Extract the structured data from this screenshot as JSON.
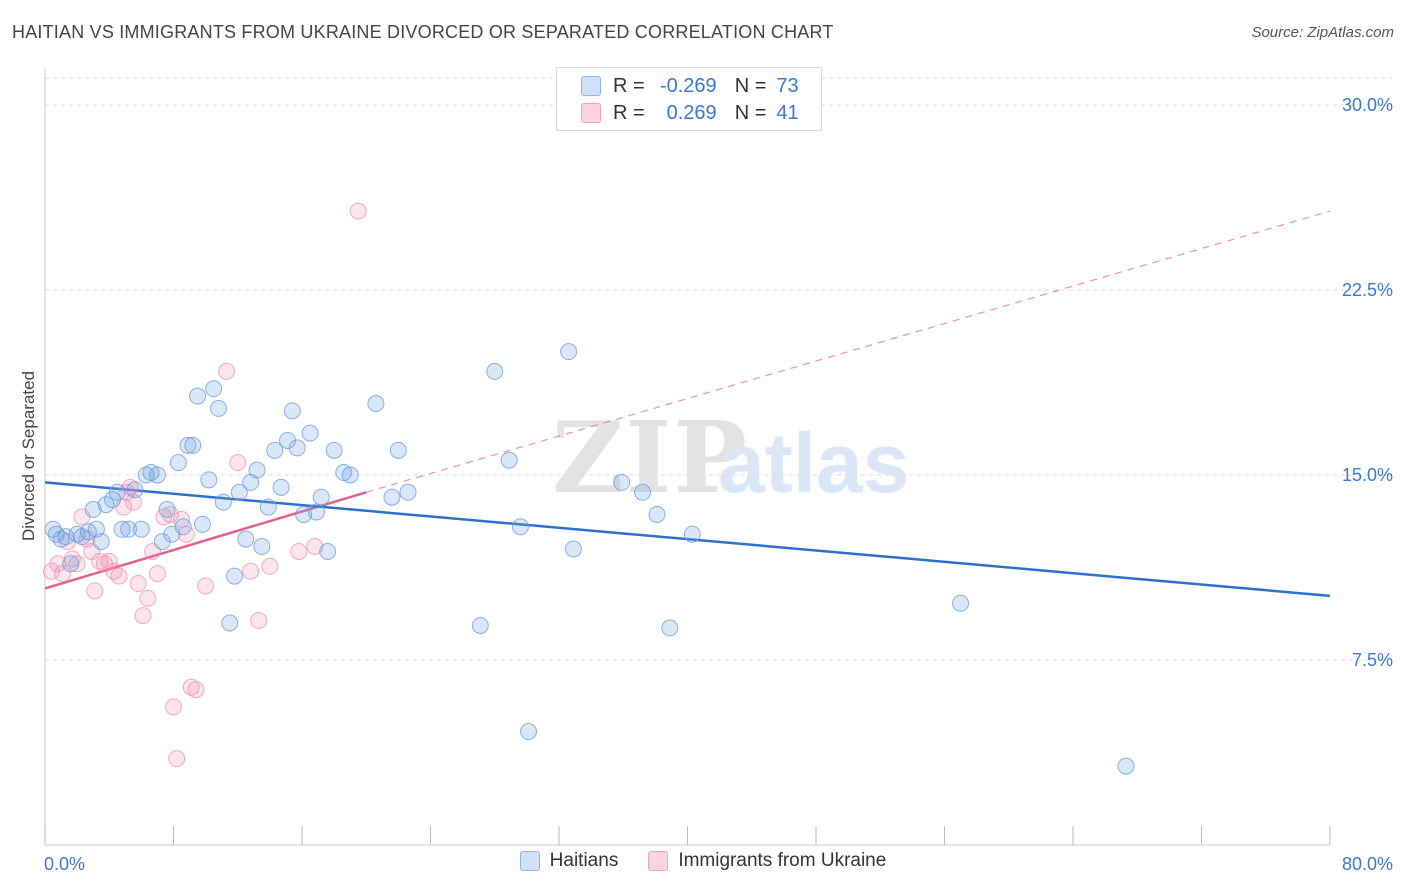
{
  "header": {
    "title": "HAITIAN VS IMMIGRANTS FROM UKRAINE DIVORCED OR SEPARATED CORRELATION CHART",
    "source": "Source: ZipAtlas.com"
  },
  "watermark": {
    "zip": "ZIP",
    "atlas": "atlas"
  },
  "legend": {
    "rows": [
      {
        "r_label": "R =",
        "r_value": "-0.269",
        "n_label": "N =",
        "n_value": "73",
        "color": "#a9c8f0"
      },
      {
        "r_label": "R =",
        "r_value": "0.269",
        "n_label": "N =",
        "n_value": "41",
        "color": "#f6b8ca"
      }
    ]
  },
  "chart_data": {
    "type": "scatter",
    "ylabel": "Divorced or Separated",
    "xlabel": "",
    "xlim": [
      0,
      80
    ],
    "ylim": [
      0,
      31.5
    ],
    "x_tick_labels": [
      "0.0%",
      "80.0%"
    ],
    "y_ticks": [
      7.5,
      15.0,
      22.5,
      30.0
    ],
    "y_tick_labels": [
      "7.5%",
      "15.0%",
      "22.5%",
      "30.0%"
    ],
    "grid": "horizontal dashed",
    "colors": {
      "haitians": "#6a9fe0",
      "ukraine": "#f08aaa",
      "haitians_line": "#2f6fcc",
      "ukraine_line": "#e0628c",
      "tick_label": "#3b77d6"
    },
    "series": [
      {
        "name": "Haitians",
        "trend": {
          "x": [
            0,
            80
          ],
          "y": [
            14.7,
            10.1
          ],
          "dashed_extension": false
        },
        "points": [
          [
            0.5,
            12.8
          ],
          [
            0.7,
            12.6
          ],
          [
            1.0,
            12.4
          ],
          [
            1.3,
            12.5
          ],
          [
            1.6,
            11.4
          ],
          [
            2.0,
            12.6
          ],
          [
            2.3,
            12.5
          ],
          [
            2.7,
            12.7
          ],
          [
            3.0,
            13.6
          ],
          [
            3.2,
            12.8
          ],
          [
            3.5,
            12.3
          ],
          [
            3.8,
            13.8
          ],
          [
            4.2,
            14.0
          ],
          [
            4.5,
            14.3
          ],
          [
            4.8,
            12.8
          ],
          [
            5.2,
            12.8
          ],
          [
            5.6,
            14.4
          ],
          [
            6.0,
            12.8
          ],
          [
            6.3,
            15.0
          ],
          [
            6.6,
            15.1
          ],
          [
            7.0,
            15.0
          ],
          [
            7.3,
            12.3
          ],
          [
            7.6,
            13.6
          ],
          [
            7.9,
            12.6
          ],
          [
            8.3,
            15.5
          ],
          [
            8.6,
            12.9
          ],
          [
            8.9,
            16.2
          ],
          [
            9.2,
            16.2
          ],
          [
            9.5,
            18.2
          ],
          [
            9.8,
            13.0
          ],
          [
            10.2,
            14.8
          ],
          [
            10.5,
            18.5
          ],
          [
            10.8,
            17.7
          ],
          [
            11.1,
            13.9
          ],
          [
            11.5,
            9.0
          ],
          [
            11.8,
            10.9
          ],
          [
            12.1,
            14.3
          ],
          [
            12.5,
            12.4
          ],
          [
            12.8,
            14.7
          ],
          [
            13.2,
            15.2
          ],
          [
            13.5,
            12.1
          ],
          [
            13.9,
            13.7
          ],
          [
            14.3,
            16.0
          ],
          [
            14.7,
            14.5
          ],
          [
            15.1,
            16.4
          ],
          [
            15.4,
            17.6
          ],
          [
            15.7,
            16.1
          ],
          [
            16.1,
            13.4
          ],
          [
            16.5,
            16.7
          ],
          [
            16.9,
            13.5
          ],
          [
            17.2,
            14.1
          ],
          [
            17.6,
            11.9
          ],
          [
            18.0,
            16.0
          ],
          [
            18.6,
            15.1
          ],
          [
            19.0,
            15.0
          ],
          [
            20.6,
            17.9
          ],
          [
            21.6,
            14.1
          ],
          [
            22.0,
            16.0
          ],
          [
            22.6,
            14.3
          ],
          [
            27.1,
            8.9
          ],
          [
            28.0,
            19.2
          ],
          [
            28.9,
            15.6
          ],
          [
            29.6,
            12.9
          ],
          [
            30.1,
            4.6
          ],
          [
            32.6,
            20.0
          ],
          [
            32.9,
            12.0
          ],
          [
            35.9,
            14.7
          ],
          [
            37.2,
            14.3
          ],
          [
            38.1,
            13.4
          ],
          [
            38.9,
            8.8
          ],
          [
            40.3,
            12.6
          ],
          [
            57.0,
            9.8
          ],
          [
            67.3,
            3.2
          ]
        ]
      },
      {
        "name": "Immigrants from Ukraine",
        "trend": {
          "x": [
            0,
            20.0
          ],
          "y": [
            10.4,
            14.3
          ],
          "dashed_x": [
            20.0,
            80
          ],
          "dashed_y": [
            14.3,
            25.7
          ]
        },
        "points": [
          [
            0.4,
            11.1
          ],
          [
            0.8,
            11.4
          ],
          [
            1.1,
            11.0
          ],
          [
            1.4,
            12.3
          ],
          [
            1.7,
            11.6
          ],
          [
            2.0,
            11.4
          ],
          [
            2.3,
            13.3
          ],
          [
            2.6,
            12.4
          ],
          [
            2.9,
            11.9
          ],
          [
            3.1,
            10.3
          ],
          [
            3.4,
            11.5
          ],
          [
            3.7,
            11.4
          ],
          [
            4.0,
            11.5
          ],
          [
            4.3,
            11.1
          ],
          [
            4.6,
            10.9
          ],
          [
            4.9,
            13.7
          ],
          [
            5.1,
            14.3
          ],
          [
            5.3,
            14.5
          ],
          [
            5.5,
            13.9
          ],
          [
            5.8,
            10.6
          ],
          [
            6.1,
            9.3
          ],
          [
            6.4,
            10.0
          ],
          [
            6.7,
            11.9
          ],
          [
            7.0,
            11.0
          ],
          [
            7.4,
            13.3
          ],
          [
            7.8,
            13.4
          ],
          [
            8.0,
            5.6
          ],
          [
            8.2,
            3.5
          ],
          [
            8.5,
            13.2
          ],
          [
            8.8,
            12.6
          ],
          [
            9.1,
            6.4
          ],
          [
            9.4,
            6.3
          ],
          [
            10.0,
            10.5
          ],
          [
            11.3,
            19.2
          ],
          [
            12.0,
            15.5
          ],
          [
            12.8,
            11.1
          ],
          [
            13.3,
            9.1
          ],
          [
            14.0,
            11.3
          ],
          [
            15.8,
            11.9
          ],
          [
            16.8,
            12.1
          ],
          [
            19.5,
            25.7
          ]
        ]
      }
    ]
  },
  "bottom_legend": {
    "items": [
      {
        "label": "Haitians",
        "color": "#a9c8f0"
      },
      {
        "label": "Immigrants from Ukraine",
        "color": "#f6b8ca"
      }
    ]
  }
}
